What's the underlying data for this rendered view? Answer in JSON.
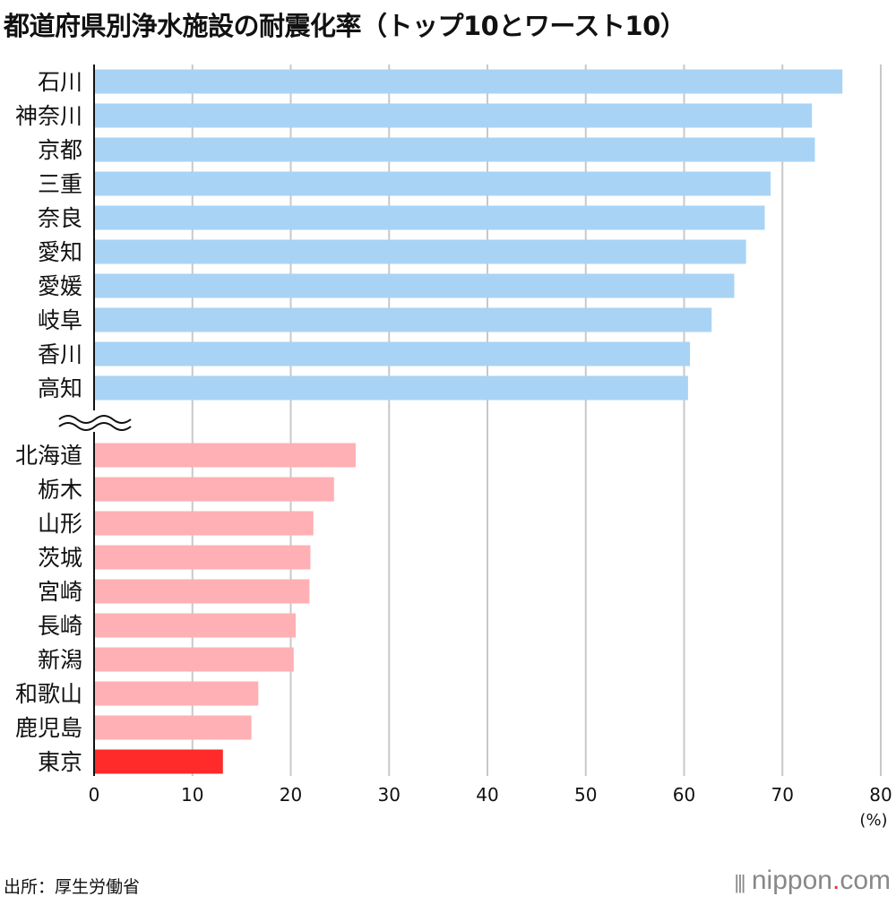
{
  "chart_data": {
    "type": "bar",
    "orientation": "horizontal",
    "title": "都道府県別浄水施設の耐震化率（トップ10とワースト10）",
    "unit_label": "(%)",
    "xlim": [
      0,
      80
    ],
    "xticks": [
      0,
      10,
      20,
      30,
      40,
      50,
      60,
      70,
      80
    ],
    "grid": true,
    "axis_break_between_groups": true,
    "groups": [
      {
        "name": "トップ10",
        "color": "#a8d3f5",
        "categories": [
          "石川",
          "神奈川",
          "京都",
          "三重",
          "奈良",
          "愛知",
          "愛媛",
          "岐阜",
          "香川",
          "高知"
        ],
        "values": [
          76.1,
          73.0,
          73.3,
          68.8,
          68.2,
          66.3,
          65.1,
          62.8,
          60.6,
          60.4
        ]
      },
      {
        "name": "ワースト10",
        "color": "#ffb0b4",
        "highlight_color": "#ff2a2a",
        "highlight": "東京",
        "categories": [
          "北海道",
          "栃木",
          "山形",
          "茨城",
          "宮崎",
          "長崎",
          "新潟",
          "和歌山",
          "鹿児島",
          "東京"
        ],
        "values": [
          26.6,
          24.4,
          22.3,
          22.0,
          21.9,
          20.5,
          20.3,
          16.7,
          16.0,
          13.1
        ]
      }
    ]
  },
  "source": "出所：厚生労働省",
  "logo": {
    "text": "nippon",
    "dot": ".",
    "suffix": "com"
  }
}
